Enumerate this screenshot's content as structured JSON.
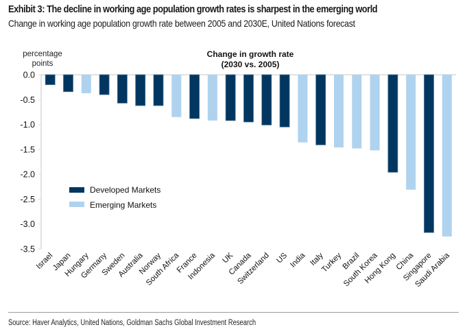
{
  "header": {
    "title": "Exhibit 3: The decline in working age population growth rates is sharpest in the emerging world",
    "subtitle": "Change in working age population growth rate between 2005 and 2030E, United Nations forecast"
  },
  "footer": {
    "source": "Source: Haver Analytics, United Nations, Goldman Sachs Global Investment Research"
  },
  "colors": {
    "developed": "#003660",
    "emerging": "#afd3ef",
    "axis": "#d9d9d9",
    "gridline": "#d9d9d9"
  },
  "chart_data": {
    "type": "bar",
    "title": "Change in growth rate",
    "title_line2": "(2030 vs. 2005)",
    "ylabel_line1": "percentage",
    "ylabel_line2": "points",
    "xlabel": "",
    "ylim": [
      -3.5,
      0.0
    ],
    "yticks": [
      0.0,
      -0.5,
      -1.0,
      -1.5,
      -2.0,
      -2.5,
      -3.0,
      -3.5
    ],
    "ytick_labels": [
      "0.0",
      "-0.5",
      "-1.0",
      "-1.5",
      "-2.0",
      "-2.5",
      "-3.0",
      "-3.5"
    ],
    "grid": false,
    "legend_position": "center-left",
    "legend": [
      {
        "key": "developed",
        "label": "Developed Markets"
      },
      {
        "key": "emerging",
        "label": "Emerging Markets"
      }
    ],
    "categories": [
      "Israel",
      "Japan",
      "Hungary",
      "Germany",
      "Sweden",
      "Australia",
      "Norway",
      "South Africa",
      "France",
      "Indonesia",
      "UK",
      "Canada",
      "Switzerland",
      "US",
      "India",
      "Italy",
      "Turkey",
      "Brazil",
      "South Korea",
      "Hong Kong",
      "China",
      "Singapore",
      "Saudi Arabia"
    ],
    "values": [
      -0.2,
      -0.34,
      -0.37,
      -0.4,
      -0.57,
      -0.62,
      -0.62,
      -0.85,
      -0.88,
      -0.92,
      -0.92,
      -0.95,
      -1.01,
      -1.05,
      -1.36,
      -1.41,
      -1.46,
      -1.48,
      -1.52,
      -1.96,
      -2.31,
      -3.17,
      -3.25
    ],
    "groups": [
      "developed",
      "developed",
      "emerging",
      "developed",
      "developed",
      "developed",
      "developed",
      "emerging",
      "developed",
      "emerging",
      "developed",
      "developed",
      "developed",
      "developed",
      "emerging",
      "developed",
      "emerging",
      "emerging",
      "emerging",
      "developed",
      "emerging",
      "developed",
      "emerging"
    ]
  }
}
